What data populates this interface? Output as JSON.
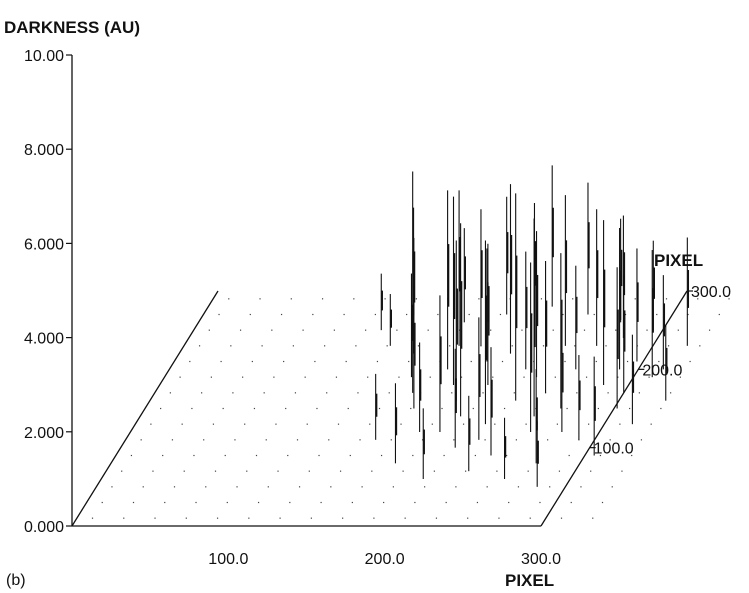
{
  "chart_data": {
    "type": "scatter",
    "projection": "3d-oblique",
    "panel_label": "(b)",
    "z_label": "DARKNESS (AU)",
    "x_label": "PIXEL",
    "y_label": "PIXEL",
    "z_ticks": [
      "10.00",
      "8.000",
      "6.000",
      "4.000",
      "2.000",
      "0.000"
    ],
    "z_tick_values": [
      10,
      8,
      6,
      4,
      2,
      0
    ],
    "x_ticks": [
      "100.0",
      "200.0",
      "300.0"
    ],
    "x_tick_values": [
      100,
      200,
      300
    ],
    "y_ticks": [
      "100.0",
      "200.0",
      "300.0"
    ],
    "y_tick_values": [
      100,
      200,
      300
    ],
    "x_range": [
      0,
      300
    ],
    "y_range": [
      0,
      300
    ],
    "z_range": [
      0,
      10
    ],
    "grid_step": 20,
    "grid": true,
    "line_color": "#111111",
    "spikes": [
      {
        "x": 150,
        "y": 220,
        "z": 3.1
      },
      {
        "x": 158,
        "y": 190,
        "z": 2.2
      },
      {
        "x": 165,
        "y": 170,
        "z": 4.7
      },
      {
        "x": 172,
        "y": 150,
        "z": 2.6
      },
      {
        "x": 178,
        "y": 200,
        "z": 3.8
      },
      {
        "x": 185,
        "y": 120,
        "z": 1.9
      },
      {
        "x": 190,
        "y": 230,
        "z": 2.9
      },
      {
        "x": 196,
        "y": 160,
        "z": 3.4
      },
      {
        "x": 200,
        "y": 210,
        "z": 2.4
      },
      {
        "x": 205,
        "y": 140,
        "z": 4.1
      },
      {
        "x": 210,
        "y": 180,
        "z": 3.0
      },
      {
        "x": 214,
        "y": 100,
        "z": 2.1
      },
      {
        "x": 218,
        "y": 250,
        "z": 2.7
      },
      {
        "x": 224,
        "y": 130,
        "z": 3.9
      },
      {
        "x": 228,
        "y": 200,
        "z": 2.5
      },
      {
        "x": 234,
        "y": 160,
        "z": 4.4
      },
      {
        "x": 240,
        "y": 90,
        "z": 2.3
      },
      {
        "x": 244,
        "y": 230,
        "z": 3.2
      },
      {
        "x": 250,
        "y": 170,
        "z": 2.8
      },
      {
        "x": 256,
        "y": 120,
        "z": 3.6
      },
      {
        "x": 260,
        "y": 200,
        "z": 2.2
      },
      {
        "x": 266,
        "y": 150,
        "z": 3.3
      },
      {
        "x": 272,
        "y": 80,
        "z": 2.0
      },
      {
        "x": 278,
        "y": 240,
        "z": 2.6
      },
      {
        "x": 284,
        "y": 180,
        "z": 3.5
      },
      {
        "x": 290,
        "y": 110,
        "z": 1.8
      },
      {
        "x": 296,
        "y": 210,
        "z": 2.4
      },
      {
        "x": 302,
        "y": 150,
        "z": 3.0
      },
      {
        "x": 306,
        "y": 90,
        "z": 2.1
      },
      {
        "x": 312,
        "y": 190,
        "z": 2.7
      },
      {
        "x": 318,
        "y": 130,
        "z": 1.9
      },
      {
        "x": 322,
        "y": 230,
        "z": 2.3
      },
      {
        "x": 330,
        "y": 160,
        "z": 1.6
      },
      {
        "x": 160,
        "y": 110,
        "z": 1.4
      },
      {
        "x": 170,
        "y": 260,
        "z": 2.0
      },
      {
        "x": 182,
        "y": 80,
        "z": 1.7
      },
      {
        "x": 194,
        "y": 270,
        "z": 2.5
      },
      {
        "x": 206,
        "y": 60,
        "z": 1.5
      },
      {
        "x": 220,
        "y": 280,
        "z": 3.0
      },
      {
        "x": 232,
        "y": 70,
        "z": 1.6
      },
      {
        "x": 246,
        "y": 270,
        "z": 2.8
      },
      {
        "x": 258,
        "y": 60,
        "z": 1.3
      },
      {
        "x": 270,
        "y": 260,
        "z": 2.2
      },
      {
        "x": 282,
        "y": 50,
        "z": 1.4
      },
      {
        "x": 294,
        "y": 250,
        "z": 1.9
      },
      {
        "x": 176,
        "y": 230,
        "z": 3.3
      },
      {
        "x": 188,
        "y": 180,
        "z": 4.0
      },
      {
        "x": 198,
        "y": 120,
        "z": 2.9
      },
      {
        "x": 212,
        "y": 220,
        "z": 3.6
      },
      {
        "x": 226,
        "y": 110,
        "z": 2.6
      },
      {
        "x": 238,
        "y": 190,
        "z": 3.1
      },
      {
        "x": 252,
        "y": 140,
        "z": 4.2
      },
      {
        "x": 264,
        "y": 230,
        "z": 2.9
      },
      {
        "x": 276,
        "y": 120,
        "z": 2.4
      },
      {
        "x": 288,
        "y": 200,
        "z": 3.0
      },
      {
        "x": 300,
        "y": 170,
        "z": 2.5
      },
      {
        "x": 316,
        "y": 200,
        "z": 2.0
      },
      {
        "x": 120,
        "y": 250,
        "z": 1.2
      },
      {
        "x": 132,
        "y": 230,
        "z": 1.1
      }
    ]
  }
}
